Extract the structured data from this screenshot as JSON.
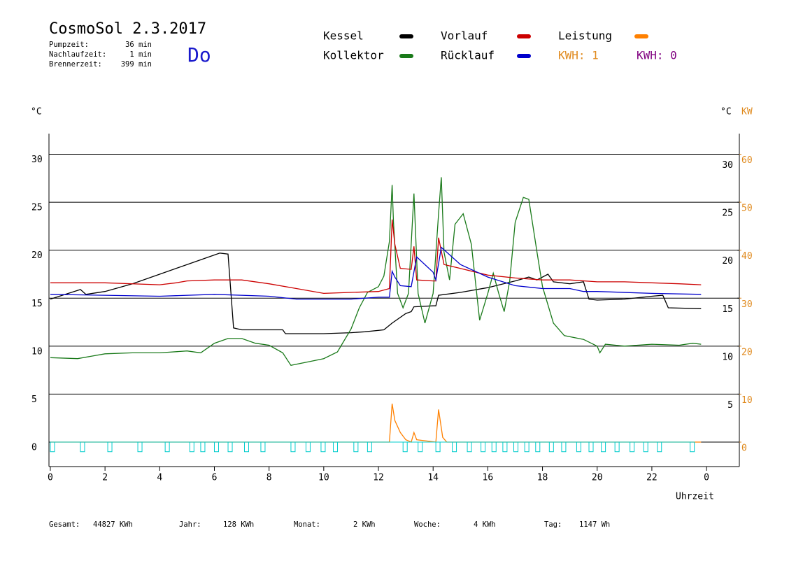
{
  "chart_data": {
    "type": "line",
    "title": "CosmoSol 2.3.2017",
    "day": "Do",
    "info": [
      {
        "label": "Pumpzeit:",
        "value": "36 min"
      },
      {
        "label": "Nachlaufzeit:",
        "value": "1 min"
      },
      {
        "label": "Brennerzeit:",
        "value": "399 min"
      }
    ],
    "y_label": "°C",
    "y_right_label": "°C",
    "y2_label": "KW",
    "x_label": "Uhrzeit",
    "legend_extra": [
      {
        "text": "KWH: 1",
        "color": "#e08a1e"
      },
      {
        "text": "KWH: 0",
        "color": "#800080"
      }
    ],
    "totals": [
      {
        "label": "Gesamt:",
        "value": "44827 KWh"
      },
      {
        "label": "Jahr:",
        "value": "128 KWh"
      },
      {
        "label": "Monat:",
        "value": "2 KWh"
      },
      {
        "label": "Woche:",
        "value": "4 KWh"
      },
      {
        "label": "Tag:",
        "value": "1147 Wh"
      }
    ],
    "xlim": [
      -0.05,
      25.2
    ],
    "xticks": [
      0,
      2,
      4,
      6,
      8,
      10,
      12,
      14,
      16,
      18,
      20,
      22,
      {
        "value": 24,
        "label": "0"
      }
    ],
    "ylim": [
      -2.55,
      32.15
    ],
    "yticks": [
      0,
      5,
      10,
      15,
      20,
      25,
      30
    ],
    "y_right_ticks": [
      5,
      10,
      15,
      20,
      25,
      30
    ],
    "y2lim": [
      -5.1,
      64.3
    ],
    "y2ticks": [
      0,
      10,
      20,
      30,
      40,
      50,
      60
    ],
    "y2_color": "#e08a1e",
    "grid": true,
    "series": [
      {
        "name": "Kessel",
        "color": "#000000",
        "x": [
          0,
          1.1,
          1.3,
          2,
          3,
          4,
          5,
          6,
          6.2,
          6.5,
          6.7,
          7,
          8.5,
          8.6,
          10,
          11,
          11.5,
          12.2,
          12.5,
          13,
          13.2,
          13.3,
          14,
          14.1,
          14.2,
          15,
          16,
          17,
          17.5,
          17.8,
          18.2,
          18.4,
          19,
          19.5,
          19.7,
          20,
          21,
          22,
          22.4,
          22.6,
          23.8
        ],
        "values": [
          14.9,
          15.9,
          15.4,
          15.7,
          16.5,
          17.5,
          18.5,
          19.5,
          19.7,
          19.6,
          11.9,
          11.7,
          11.7,
          11.3,
          11.3,
          11.4,
          11.5,
          11.7,
          12.4,
          13.4,
          13.6,
          14.1,
          14.2,
          14.2,
          15.3,
          15.6,
          16.1,
          16.8,
          17.2,
          16.9,
          17.5,
          16.7,
          16.5,
          16.7,
          14.9,
          14.8,
          14.9,
          15.2,
          15.3,
          14.0,
          13.9
        ]
      },
      {
        "name": "Kollektor",
        "color": "#1a7a1a",
        "x": [
          0,
          1,
          2,
          3,
          4,
          5,
          5.5,
          6,
          6.5,
          7,
          7.5,
          8,
          8.5,
          8.8,
          9.5,
          10,
          10.5,
          11,
          11.3,
          11.6,
          12,
          12.2,
          12.4,
          12.5,
          12.55,
          12.7,
          12.9,
          13.1,
          13.3,
          13.45,
          13.7,
          14,
          14.2,
          14.3,
          14.4,
          14.6,
          14.8,
          15.1,
          15.4,
          15.7,
          16,
          16.2,
          16.4,
          16.6,
          16.8,
          17,
          17.3,
          17.5,
          17.8,
          18,
          18.4,
          18.8,
          19.5,
          20,
          20.1,
          20.3,
          21,
          22,
          23,
          23.5,
          23.8
        ],
        "values": [
          8.8,
          8.7,
          9.2,
          9.3,
          9.3,
          9.5,
          9.3,
          10.3,
          10.8,
          10.8,
          10.3,
          10.1,
          9.3,
          8.0,
          8.4,
          8.7,
          9.4,
          11.8,
          14.0,
          15.6,
          16.2,
          17.3,
          20.9,
          26.8,
          23.0,
          15.5,
          14.0,
          15.5,
          25.9,
          15.5,
          12.4,
          15.5,
          23.8,
          27.6,
          19.8,
          16.9,
          22.7,
          23.8,
          20.6,
          12.7,
          15.5,
          17.6,
          15.5,
          13.6,
          16.8,
          22.9,
          25.5,
          25.3,
          19.8,
          16.2,
          12.4,
          11.1,
          10.7,
          10.0,
          9.3,
          10.2,
          10.0,
          10.2,
          10.1,
          10.3,
          10.2
        ]
      },
      {
        "name": "Vorlauf",
        "color": "#cc0000",
        "x": [
          0,
          2,
          4,
          4.6,
          5,
          6,
          7,
          8,
          9,
          10,
          11,
          12,
          12.4,
          12.5,
          12.6,
          12.8,
          13.2,
          13.3,
          13.4,
          14,
          14.1,
          14.2,
          14.4,
          15,
          16,
          17,
          18,
          19,
          20,
          21,
          22,
          23,
          23.8
        ],
        "values": [
          16.6,
          16.6,
          16.4,
          16.6,
          16.8,
          16.9,
          16.9,
          16.5,
          16.0,
          15.5,
          15.6,
          15.7,
          16.0,
          23.2,
          20.6,
          18.1,
          18.0,
          20.4,
          16.9,
          16.8,
          16.8,
          21.3,
          18.5,
          18.1,
          17.4,
          17.1,
          16.9,
          16.9,
          16.7,
          16.7,
          16.6,
          16.5,
          16.4
        ]
      },
      {
        "name": "Rücklauf",
        "color": "#0000cc",
        "x": [
          0,
          2,
          4,
          6,
          8,
          9,
          10,
          11,
          12,
          12.4,
          12.5,
          12.6,
          12.8,
          13.2,
          13.4,
          14,
          14.1,
          14.3,
          15,
          16,
          17,
          18,
          19,
          19.5,
          20,
          22,
          23.8
        ],
        "values": [
          15.4,
          15.3,
          15.2,
          15.4,
          15.2,
          14.9,
          14.9,
          14.9,
          15.1,
          15.1,
          17.8,
          17.2,
          16.3,
          16.2,
          19.3,
          17.7,
          16.9,
          20.3,
          18.5,
          17.2,
          16.3,
          16.0,
          16.0,
          15.7,
          15.7,
          15.5,
          15.4
        ]
      },
      {
        "name": "Leistung",
        "color": "#ff8000",
        "axis": "y2",
        "x": [
          0,
          12.4,
          12.5,
          12.6,
          12.8,
          13,
          13.2,
          13.3,
          13.4,
          14.1,
          14.2,
          14.35,
          14.5,
          23.8
        ],
        "values": [
          0,
          0,
          8,
          4.5,
          2,
          0.5,
          0,
          2,
          0.5,
          0,
          6.8,
          1,
          0,
          0
        ]
      },
      {
        "color": "#00cccc",
        "kind": "pulse",
        "x": [
          0,
          1.1,
          2.1,
          3.2,
          4.2,
          5.1,
          5.5,
          6.0,
          6.5,
          7.1,
          7.7,
          8.8,
          9.35,
          9.9,
          10.35,
          11.1,
          11.6,
          12.9,
          13.45,
          14.1,
          14.7,
          15.25,
          15.75,
          16.15,
          16.55,
          16.95,
          17.35,
          17.75,
          18.25,
          18.7,
          19.25,
          19.7,
          20.15,
          20.65,
          21.2,
          21.7,
          22.2,
          23.4
        ],
        "values": [
          -1,
          -1,
          -1,
          -1,
          -1,
          -1,
          -1,
          -1,
          -1,
          -1,
          -1,
          -1,
          -1,
          -1,
          -1,
          -1,
          -1,
          -1,
          -1,
          -1,
          -1,
          -1,
          -1,
          -1,
          -1,
          -1,
          -1,
          -1,
          -1,
          -1,
          -1,
          -1,
          -1,
          -1,
          -1,
          -1,
          -1,
          -1
        ]
      }
    ]
  }
}
